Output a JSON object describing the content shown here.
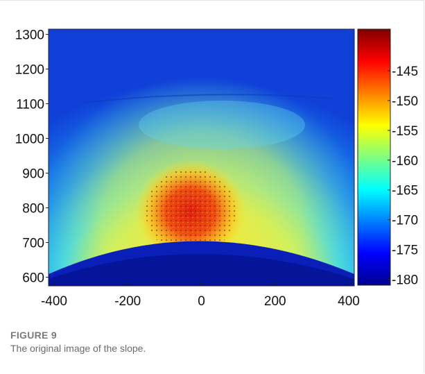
{
  "figure": {
    "label": "FIGURE 9",
    "caption": "The original image of the slope."
  },
  "chart_data": {
    "type": "heatmap",
    "title": "",
    "xlabel": "",
    "ylabel": "",
    "xlim": [
      -415,
      415
    ],
    "ylim": [
      575,
      1315
    ],
    "x_ticks": [
      -400,
      -200,
      0,
      200,
      400
    ],
    "y_ticks": [
      600,
      700,
      800,
      900,
      1000,
      1100,
      1200,
      1300
    ],
    "colorbar": {
      "range": [
        -181,
        -138
      ],
      "ticks": [
        -145,
        -150,
        -155,
        -160,
        -165,
        -170,
        -175,
        -180
      ],
      "colormap": "jet",
      "position": "right"
    },
    "grid": false
  }
}
